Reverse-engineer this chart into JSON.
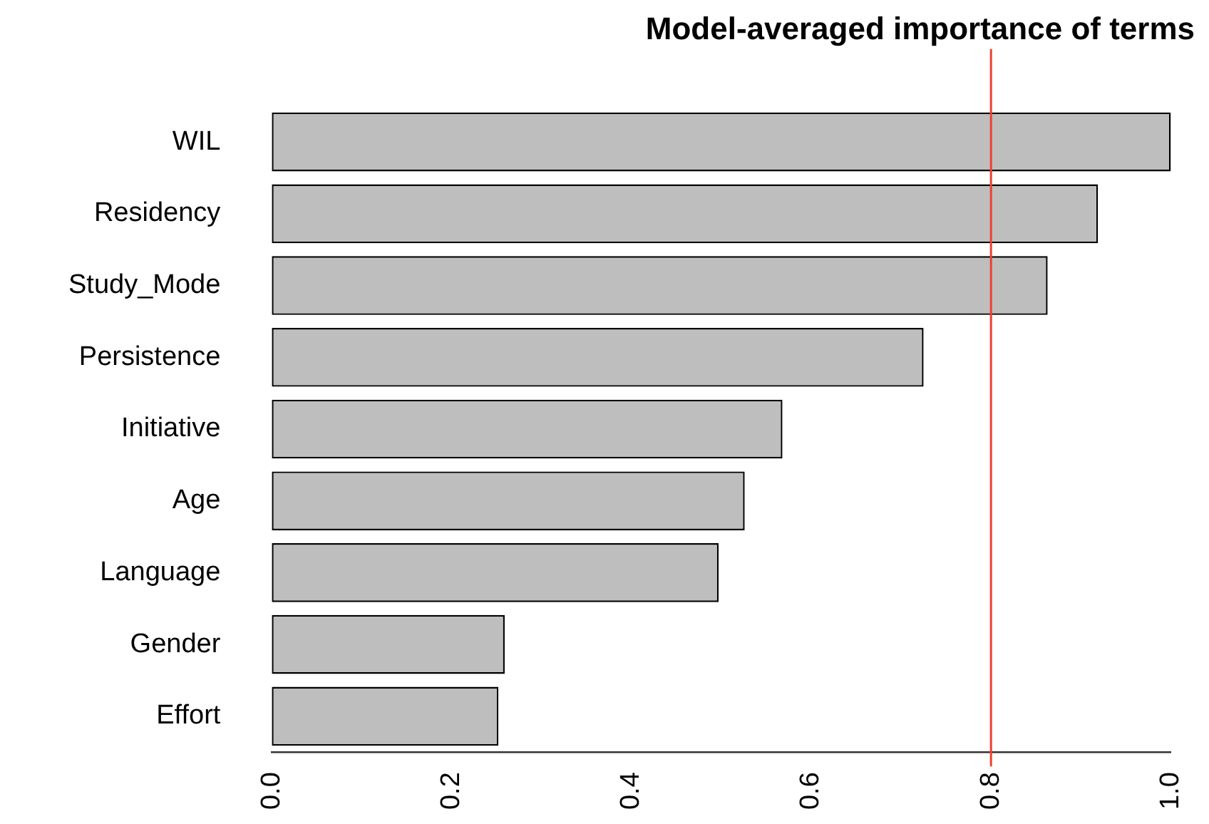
{
  "chart_data": {
    "type": "bar",
    "orientation": "horizontal",
    "title": "Model-averaged importance of terms",
    "categories": [
      "WIL",
      "Residency",
      "Study_Mode",
      "Persistence",
      "Initiative",
      "Age",
      "Language",
      "Gender",
      "Effort"
    ],
    "values": [
      1.0,
      0.919,
      0.863,
      0.725,
      0.568,
      0.526,
      0.497,
      0.259,
      0.252
    ],
    "color": "#bebebe",
    "xlim": [
      0,
      1
    ],
    "xticks": [
      {
        "value": 0,
        "label": "0.0"
      },
      0.2,
      0.4,
      0.6,
      0.8,
      {
        "value": 1,
        "label": "1.0"
      }
    ],
    "ref_lines": [
      {
        "axis": "x",
        "value": 0.8,
        "color": "#f04030"
      }
    ],
    "grid": false,
    "legend": false
  }
}
